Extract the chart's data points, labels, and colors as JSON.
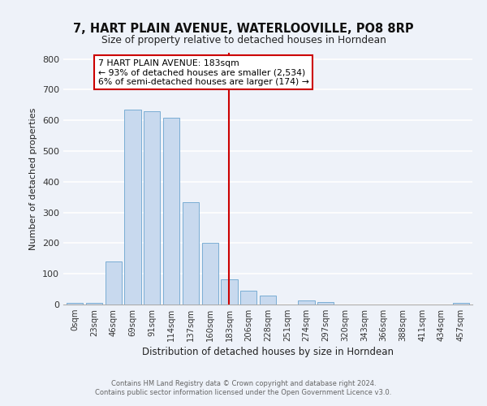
{
  "title": "7, HART PLAIN AVENUE, WATERLOOVILLE, PO8 8RP",
  "subtitle": "Size of property relative to detached houses in Horndean",
  "xlabel": "Distribution of detached houses by size in Horndean",
  "ylabel": "Number of detached properties",
  "bar_color": "#c8d9ee",
  "bar_edge_color": "#7aadd4",
  "categories": [
    "0sqm",
    "23sqm",
    "46sqm",
    "69sqm",
    "91sqm",
    "114sqm",
    "137sqm",
    "160sqm",
    "183sqm",
    "206sqm",
    "228sqm",
    "251sqm",
    "274sqm",
    "297sqm",
    "320sqm",
    "343sqm",
    "366sqm",
    "388sqm",
    "411sqm",
    "434sqm",
    "457sqm"
  ],
  "values": [
    5,
    5,
    140,
    635,
    630,
    608,
    332,
    202,
    83,
    45,
    28,
    0,
    12,
    8,
    0,
    0,
    0,
    0,
    0,
    0,
    5
  ],
  "vline_x_index": 8,
  "vline_color": "#cc0000",
  "annotation_title": "7 HART PLAIN AVENUE: 183sqm",
  "annotation_line1": "← 93% of detached houses are smaller (2,534)",
  "annotation_line2": "6% of semi-detached houses are larger (174) →",
  "annotation_box_color": "#cc0000",
  "ylim": [
    0,
    820
  ],
  "yticks": [
    0,
    100,
    200,
    300,
    400,
    500,
    600,
    700,
    800
  ],
  "footnote1": "Contains HM Land Registry data © Crown copyright and database right 2024.",
  "footnote2": "Contains public sector information licensed under the Open Government Licence v3.0.",
  "background_color": "#eef2f9",
  "grid_color": "#ffffff"
}
